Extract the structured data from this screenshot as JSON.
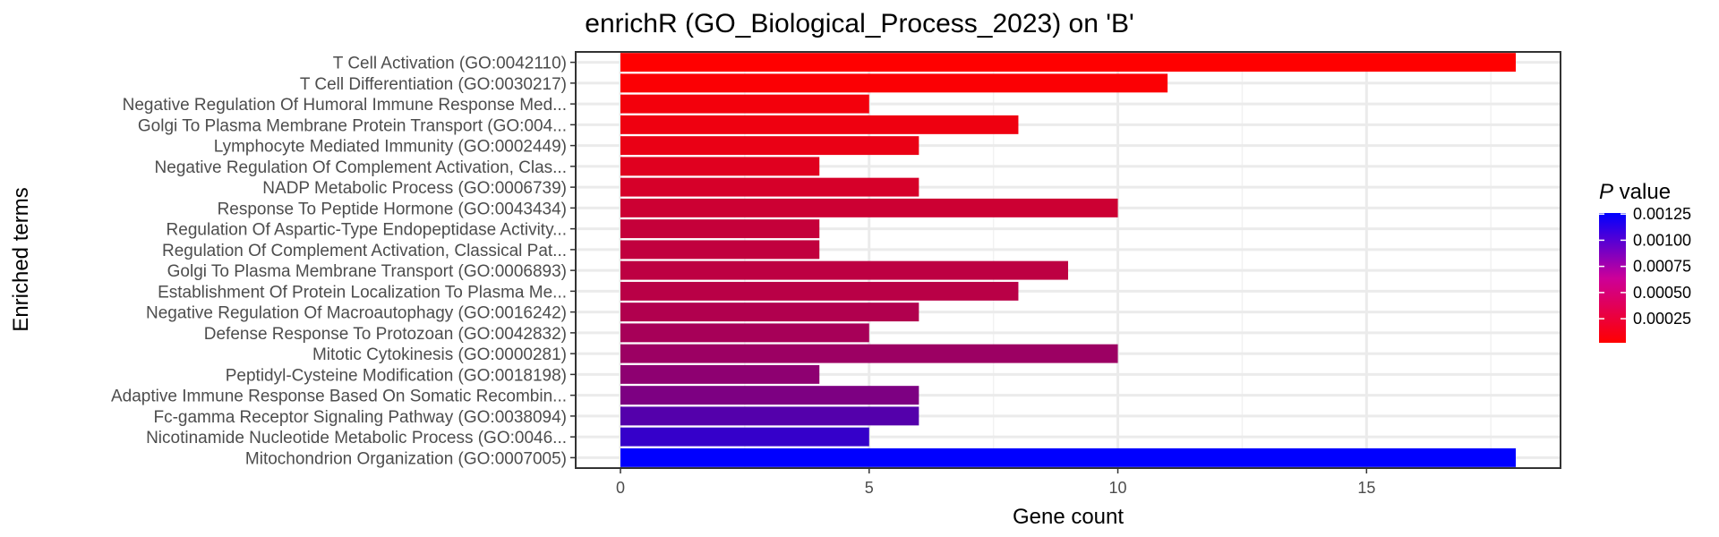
{
  "chart_data": {
    "type": "bar",
    "orientation": "horizontal",
    "title": "enrichR (GO_Biological_Process_2023) on 'B'",
    "xlabel": "Gene count",
    "ylabel": "Enriched terms",
    "xlim": [
      -0.9,
      18.9
    ],
    "xticks": [
      0,
      5,
      10,
      15
    ],
    "grid": true,
    "legend": {
      "title_italic": "P",
      "title_rest": " value",
      "placement": "right",
      "labels": [
        "0.00125",
        "0.00100",
        "0.00075",
        "0.00050",
        "0.00025"
      ],
      "tick_values": [
        0.00125,
        0.001,
        0.00075,
        0.0005,
        0.00025
      ],
      "range": [
        2e-05,
        0.00126
      ],
      "color_low": "#ff0000",
      "color_high": "#0000ff"
    },
    "categories": [
      "T Cell Activation (GO:0042110)",
      "T Cell Differentiation (GO:0030217)",
      "Negative Regulation Of Humoral Immune Response Med...",
      "Golgi To Plasma Membrane Protein Transport (GO:004...",
      "Lymphocyte Mediated Immunity (GO:0002449)",
      "Negative Regulation Of Complement Activation, Clas...",
      "NADP Metabolic Process (GO:0006739)",
      "Response To Peptide Hormone (GO:0043434)",
      "Regulation Of Aspartic-Type Endopeptidase Activity...",
      "Regulation Of Complement Activation, Classical Pat...",
      "Golgi To Plasma Membrane Transport (GO:0006893)",
      "Establishment Of Protein Localization To Plasma Me...",
      "Negative Regulation Of Macroautophagy (GO:0016242)",
      "Defense Response To Protozoan (GO:0042832)",
      "Mitotic Cytokinesis (GO:0000281)",
      "Peptidyl-Cysteine Modification (GO:0018198)",
      "Adaptive Immune Response Based On Somatic Recombin...",
      "Fc-gamma Receptor Signaling Pathway (GO:0038094)",
      "Nicotinamide Nucleotide Metabolic Process (GO:0046...",
      "Mitochondrion Organization (GO:0007005)"
    ],
    "values": [
      18,
      11,
      5,
      8,
      6,
      4,
      6,
      10,
      4,
      4,
      9,
      8,
      6,
      5,
      10,
      4,
      6,
      6,
      5,
      18
    ],
    "p_values": [
      2e-05,
      4e-05,
      8e-05,
      0.0001,
      0.00012,
      0.00017,
      0.00022,
      0.00027,
      0.0003,
      0.00032,
      0.00034,
      0.00036,
      0.0004,
      0.00045,
      0.0005,
      0.00057,
      0.00065,
      0.00085,
      0.001,
      0.00126
    ]
  }
}
